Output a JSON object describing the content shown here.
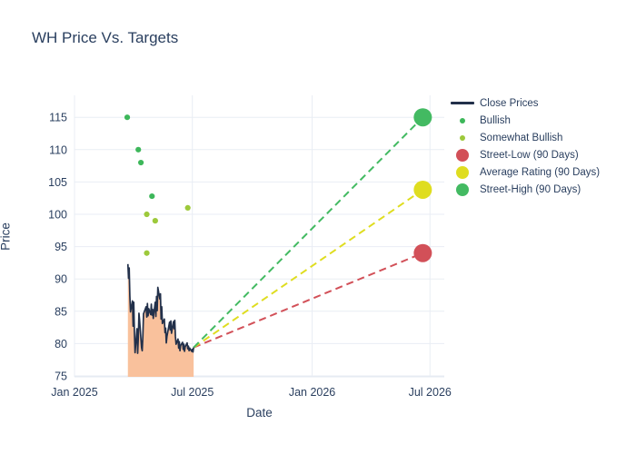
{
  "title": "WH Price Vs. Targets",
  "colors": {
    "text": "#2a3f5f",
    "grid": "#e9edf4",
    "axis_line": "#e3e9f2",
    "close_line": "#22304a",
    "close_fill": "#f9c19c",
    "bullish": "#3db75a",
    "somewhat_bullish": "#9dc93b",
    "street_low": "#d25058",
    "average_rating": "#dfdd20",
    "street_high": "#43ba62",
    "background": "#ffffff"
  },
  "chart_data": {
    "type": "line",
    "title": "WH Price Vs. Targets",
    "xlabel": "Date",
    "ylabel": "Price",
    "grid": true,
    "legend_position": "top-right",
    "x_range": [
      "2025-01-01",
      "2026-07-23"
    ],
    "y_range": [
      75,
      118.4
    ],
    "y_ticks": [
      75,
      80,
      85,
      90,
      95,
      100,
      105,
      110,
      115
    ],
    "x_ticks": [
      {
        "label": "Jan 2025",
        "date": "2025-01-01"
      },
      {
        "label": "Jul 2025",
        "date": "2025-07-01"
      },
      {
        "label": "Jan 2026",
        "date": "2026-01-01"
      },
      {
        "label": "Jul 2026",
        "date": "2026-07-01"
      }
    ],
    "series": [
      {
        "name": "Close Prices",
        "type": "line",
        "color": "#22304a",
        "fill_color": "#f9c19c",
        "swatch": "line",
        "points": [
          [
            "2025-03-24",
            92.3
          ],
          [
            "2025-03-25",
            90.1
          ],
          [
            "2025-03-26",
            91.7
          ],
          [
            "2025-03-27",
            87.4
          ],
          [
            "2025-03-28",
            84.9
          ],
          [
            "2025-03-31",
            86.6
          ],
          [
            "2025-04-01",
            82.7
          ],
          [
            "2025-04-02",
            86.4
          ],
          [
            "2025-04-03",
            81.9
          ],
          [
            "2025-04-04",
            78.6
          ],
          [
            "2025-04-07",
            82.3
          ],
          [
            "2025-04-08",
            78.5
          ],
          [
            "2025-04-09",
            80.9
          ],
          [
            "2025-04-10",
            84.7
          ],
          [
            "2025-04-11",
            83.6
          ],
          [
            "2025-04-14",
            79.4
          ],
          [
            "2025-04-15",
            78.9
          ],
          [
            "2025-04-16",
            81.2
          ],
          [
            "2025-04-17",
            84.6
          ],
          [
            "2025-04-21",
            85.7
          ],
          [
            "2025-04-22",
            84.1
          ],
          [
            "2025-04-23",
            86.2
          ],
          [
            "2025-04-24",
            84.3
          ],
          [
            "2025-04-25",
            85.4
          ],
          [
            "2025-04-28",
            84.5
          ],
          [
            "2025-04-29",
            86.1
          ],
          [
            "2025-04-30",
            84.4
          ],
          [
            "2025-05-01",
            85.3
          ],
          [
            "2025-05-02",
            83.9
          ],
          [
            "2025-05-05",
            86.4
          ],
          [
            "2025-05-06",
            84.2
          ],
          [
            "2025-05-07",
            87.3
          ],
          [
            "2025-05-08",
            85.1
          ],
          [
            "2025-05-09",
            88.7
          ],
          [
            "2025-05-12",
            86.9
          ],
          [
            "2025-05-13",
            87.7
          ],
          [
            "2025-05-14",
            83.8
          ],
          [
            "2025-05-15",
            85.7
          ],
          [
            "2025-05-16",
            83.1
          ],
          [
            "2025-05-19",
            83.8
          ],
          [
            "2025-05-20",
            81.7
          ],
          [
            "2025-05-21",
            82.4
          ],
          [
            "2025-05-22",
            80.1
          ],
          [
            "2025-05-23",
            81.1
          ],
          [
            "2025-05-27",
            83.3
          ],
          [
            "2025-05-28",
            82.1
          ],
          [
            "2025-05-29",
            83.5
          ],
          [
            "2025-05-30",
            81.6
          ],
          [
            "2025-06-02",
            83.4
          ],
          [
            "2025-06-03",
            82.3
          ],
          [
            "2025-06-04",
            83.6
          ],
          [
            "2025-06-05",
            81.1
          ],
          [
            "2025-06-06",
            79.9
          ],
          [
            "2025-06-09",
            80.7
          ],
          [
            "2025-06-10",
            79.3
          ],
          [
            "2025-06-11",
            80.3
          ],
          [
            "2025-06-12",
            78.9
          ],
          [
            "2025-06-13",
            79.7
          ],
          [
            "2025-06-16",
            80.2
          ],
          [
            "2025-06-17",
            79.1
          ],
          [
            "2025-06-18",
            79.9
          ],
          [
            "2025-06-19",
            78.8
          ],
          [
            "2025-06-20",
            79.5
          ],
          [
            "2025-06-23",
            80.1
          ],
          [
            "2025-06-24",
            79.2
          ],
          [
            "2025-06-25",
            79.6
          ],
          [
            "2025-06-26",
            78.9
          ],
          [
            "2025-06-27",
            79.3
          ],
          [
            "2025-06-30",
            78.8
          ],
          [
            "2025-07-01",
            79.1
          ],
          [
            "2025-07-02",
            78.7
          ],
          [
            "2025-07-03",
            79.4
          ]
        ]
      },
      {
        "name": "Bullish",
        "type": "scatter",
        "color": "#3db75a",
        "swatch": "dot-small",
        "points": [
          [
            "2025-03-23",
            115.0
          ],
          [
            "2025-04-09",
            110.0
          ],
          [
            "2025-04-13",
            108.0
          ],
          [
            "2025-04-30",
            102.8
          ]
        ]
      },
      {
        "name": "Somewhat Bullish",
        "type": "scatter",
        "color": "#9dc93b",
        "swatch": "dot-small",
        "points": [
          [
            "2025-04-22",
            100.0
          ],
          [
            "2025-04-22",
            94.0
          ],
          [
            "2025-05-05",
            99.0
          ],
          [
            "2025-06-24",
            101.0
          ]
        ]
      },
      {
        "name": "Street-Low (90 Days)",
        "type": "target",
        "color": "#d25058",
        "swatch": "dot-big",
        "points": [
          [
            "2026-06-20",
            94.0
          ]
        ]
      },
      {
        "name": "Average Rating (90 Days)",
        "type": "target",
        "color": "#dfdd20",
        "swatch": "dot-big",
        "points": [
          [
            "2026-06-20",
            103.8
          ]
        ]
      },
      {
        "name": "Street-High (90 Days)",
        "type": "target",
        "color": "#43ba62",
        "swatch": "dot-big",
        "points": [
          [
            "2026-06-20",
            115.0
          ]
        ]
      }
    ]
  }
}
